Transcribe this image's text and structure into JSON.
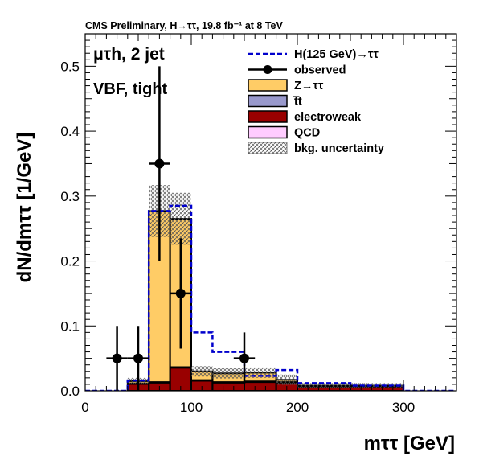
{
  "chart_data": {
    "type": "bar",
    "header": "CMS Preliminary,  H→ττ, 19.8 fb⁻¹ at 8 TeV",
    "channel_label": "μτh, 2 jet",
    "category_label": "VBF, tight",
    "xlabel": "mττ [GeV]",
    "ylabel": "dN/dmττ [1/GeV]",
    "xlim": [
      0,
      350
    ],
    "ylim": [
      0,
      0.55
    ],
    "x_ticks": [
      0,
      100,
      200,
      300
    ],
    "y_ticks": [
      0.0,
      0.1,
      0.2,
      0.3,
      0.4,
      0.5
    ],
    "bin_edges": [
      0,
      40,
      60,
      80,
      100,
      120,
      150,
      180,
      200,
      250,
      300,
      350
    ],
    "stack": [
      {
        "name": "electroweak",
        "color": "#990000",
        "values": [
          0,
          0.01,
          0.012,
          0.035,
          0.015,
          0.012,
          0.013,
          0.012,
          0.006,
          0.006,
          0
        ]
      },
      {
        "name": "t̅t",
        "color": "#9999CC",
        "values": [
          0,
          0.001,
          0.001,
          0.001,
          0.001,
          0.001,
          0.001,
          0.001,
          0.0005,
          0.0005,
          0
        ]
      },
      {
        "name": "QCD",
        "color": "#FFCCFF",
        "values": [
          0,
          0.001,
          0.001,
          0.001,
          0.001,
          0.001,
          0.001,
          0.001,
          0.0005,
          0.0005,
          0
        ]
      },
      {
        "name": "Z→ττ",
        "color": "#FFCC66",
        "values": [
          0,
          0.003,
          0.263,
          0.228,
          0.013,
          0.013,
          0.013,
          0.003,
          0.001,
          0.001,
          0
        ]
      }
    ],
    "signal": {
      "name": "H(125 GeV)→ττ",
      "color": "#0000CC",
      "values": [
        0,
        0.016,
        0.277,
        0.285,
        0.09,
        0.06,
        0.023,
        0.032,
        0.012,
        0.008,
        0
      ]
    },
    "uncertainty": {
      "name": "bkg. uncertainty",
      "values": [
        0,
        0.005,
        0.04,
        0.04,
        0.008,
        0.008,
        0.008,
        0.008,
        0.004,
        0.004,
        0
      ]
    },
    "observed": {
      "name": "observed",
      "points": [
        {
          "x": 30,
          "y": 0.05,
          "err": 0.05
        },
        {
          "x": 50,
          "y": 0.05,
          "err": 0.05
        },
        {
          "x": 70,
          "y": 0.35,
          "err": 0.15
        },
        {
          "x": 90,
          "y": 0.15,
          "err": 0.085
        },
        {
          "x": 150,
          "y": 0.05,
          "err": 0.04
        }
      ]
    },
    "legend_placement": "top-right",
    "legend": [
      "H(125 GeV)→ττ",
      "observed",
      "Z→ττ",
      "t̅t",
      "electroweak",
      "QCD",
      "bkg. uncertainty"
    ]
  }
}
